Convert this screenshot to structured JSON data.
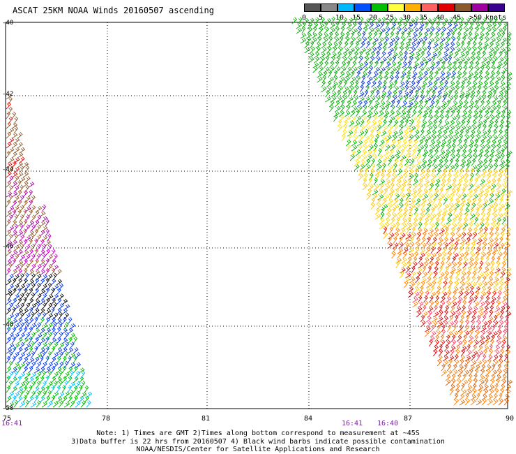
{
  "title": "ASCAT 25KM NOAA Winds 20160507 ascending",
  "legend": {
    "labels": [
      "0",
      "5",
      "10",
      "15",
      "20",
      "25",
      "30",
      "35",
      "40",
      "45",
      ">50"
    ],
    "units": "knots",
    "colors": [
      "#555555",
      "#888888",
      "#00b8ff",
      "#0050ff",
      "#00c000",
      "#ffff40",
      "#ffb000",
      "#ff6060",
      "#e00000",
      "#8b5a2b",
      "#a000a0",
      "#3a0090"
    ]
  },
  "map": {
    "x_ticks": [
      "75",
      "78",
      "81",
      "84",
      "87",
      "90"
    ],
    "y_ticks": [
      "-40",
      "-42",
      "-44",
      "-46",
      "-48",
      "-50"
    ],
    "grid": "dotted",
    "time_labels": {
      "left": "16:41",
      "mid1": "16:41",
      "mid2": "16:40"
    }
  },
  "notes": {
    "line1": "Note: 1) Times are GMT 2)Times along bottom correspond to measurement at ~45S",
    "line2": "3)Data buffer is 22 hrs from 20160507 4) Black wind barbs indicate possible contamination",
    "line3": "NOAA/NESDIS/Center for Satellite Applications and Research"
  }
}
